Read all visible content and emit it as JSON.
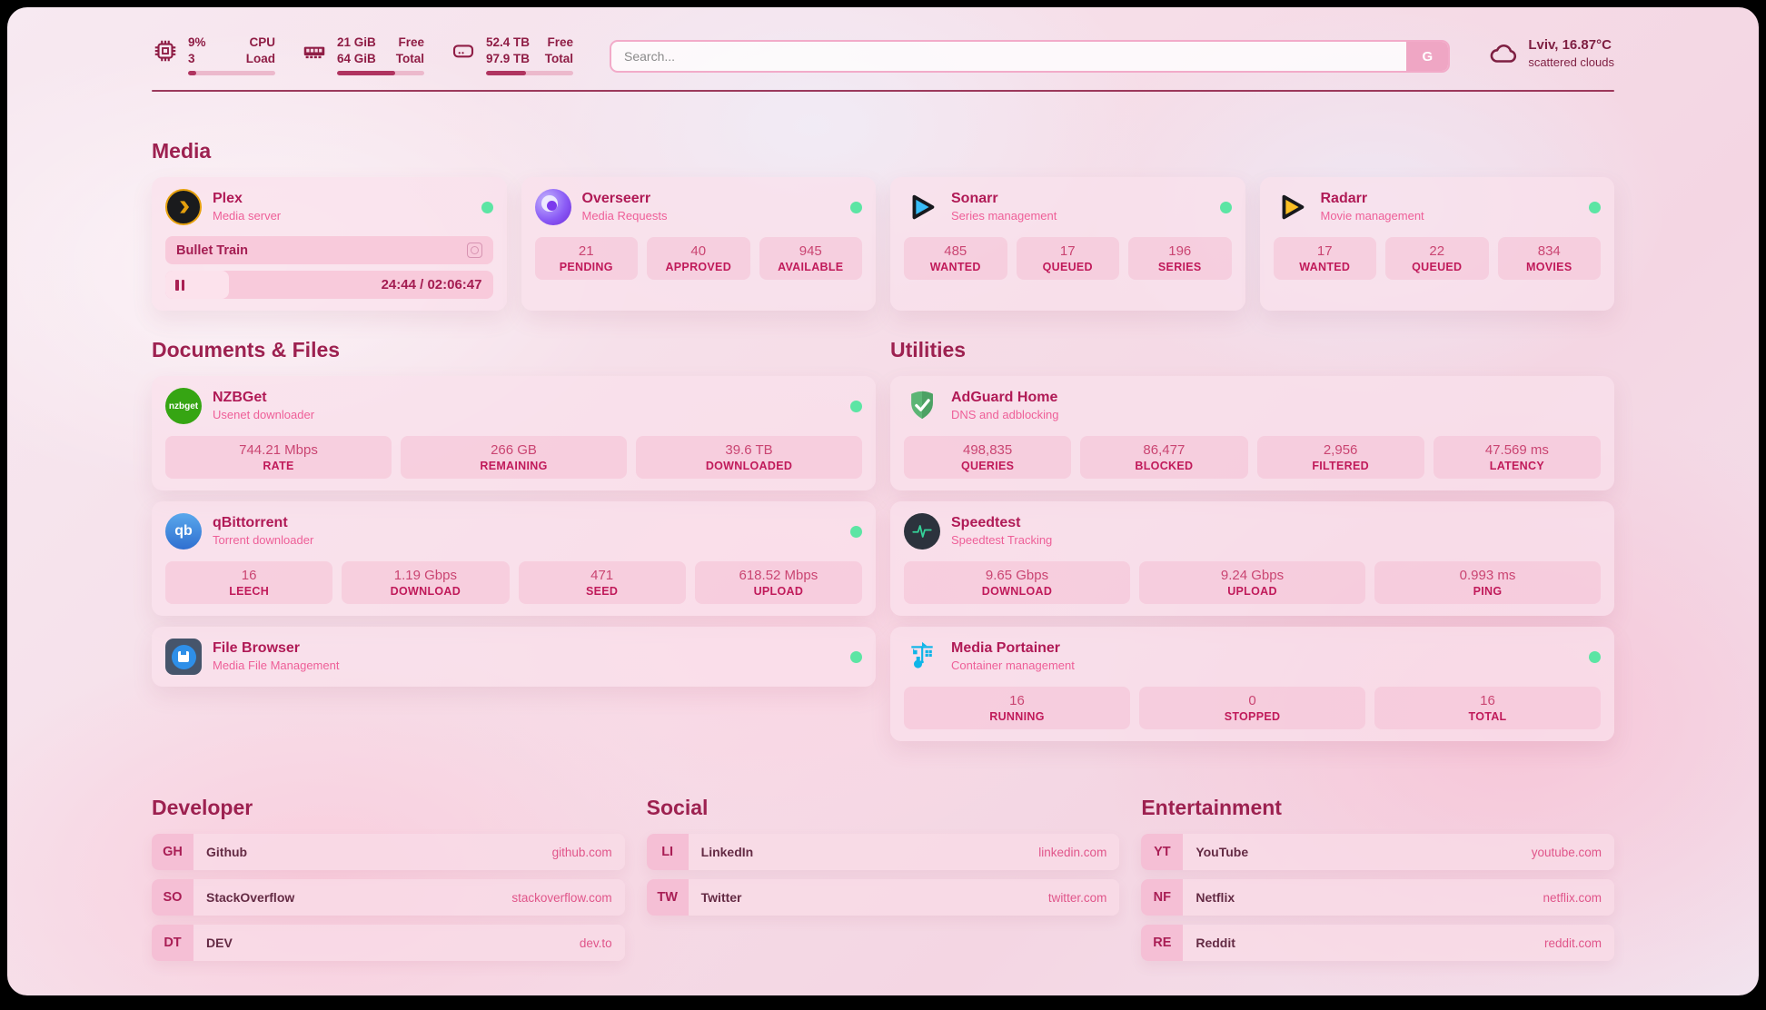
{
  "topbar": {
    "cpu": {
      "value1": "9%",
      "value2": "3",
      "label1": "CPU",
      "label2": "Load",
      "progress_pct": 9
    },
    "memory": {
      "value1": "21 GiB",
      "value2": "64 GiB",
      "label1": "Free",
      "label2": "Total",
      "progress_pct": 67
    },
    "disk": {
      "value1": "52.4 TB",
      "value2": "97.9 TB",
      "label1": "Free",
      "label2": "Total",
      "progress_pct": 46
    },
    "search": {
      "placeholder": "Search...",
      "button_label": "G"
    },
    "weather": {
      "location": "Lviv, 16.87°C",
      "condition": "scattered clouds"
    }
  },
  "media": {
    "heading": "Media",
    "plex": {
      "title": "Plex",
      "subtitle": "Media server",
      "now_playing": "Bullet Train",
      "time": "24:44 / 02:06:47",
      "progress_pct": 19.5
    },
    "overseerr": {
      "title": "Overseerr",
      "subtitle": "Media Requests",
      "stats": [
        {
          "value": "21",
          "label": "PENDING"
        },
        {
          "value": "40",
          "label": "APPROVED"
        },
        {
          "value": "945",
          "label": "AVAILABLE"
        }
      ]
    },
    "sonarr": {
      "title": "Sonarr",
      "subtitle": "Series management",
      "stats": [
        {
          "value": "485",
          "label": "WANTED"
        },
        {
          "value": "17",
          "label": "QUEUED"
        },
        {
          "value": "196",
          "label": "SERIES"
        }
      ]
    },
    "radarr": {
      "title": "Radarr",
      "subtitle": "Movie management",
      "stats": [
        {
          "value": "17",
          "label": "WANTED"
        },
        {
          "value": "22",
          "label": "QUEUED"
        },
        {
          "value": "834",
          "label": "MOVIES"
        }
      ]
    }
  },
  "documents": {
    "heading": "Documents & Files",
    "nzbget": {
      "title": "NZBGet",
      "subtitle": "Usenet downloader",
      "icon_label": "nzbget",
      "stats": [
        {
          "value": "744.21 Mbps",
          "label": "RATE"
        },
        {
          "value": "266 GB",
          "label": "REMAINING"
        },
        {
          "value": "39.6 TB",
          "label": "DOWNLOADED"
        }
      ]
    },
    "qbittorrent": {
      "title": "qBittorrent",
      "subtitle": "Torrent downloader",
      "icon_label": "qb",
      "stats": [
        {
          "value": "16",
          "label": "LEECH"
        },
        {
          "value": "1.19 Gbps",
          "label": "DOWNLOAD"
        },
        {
          "value": "471",
          "label": "SEED"
        },
        {
          "value": "618.52 Mbps",
          "label": "UPLOAD"
        }
      ]
    },
    "filebrowser": {
      "title": "File Browser",
      "subtitle": "Media File Management"
    }
  },
  "utilities": {
    "heading": "Utilities",
    "adguard": {
      "title": "AdGuard Home",
      "subtitle": "DNS and adblocking",
      "stats": [
        {
          "value": "498,835",
          "label": "QUERIES"
        },
        {
          "value": "86,477",
          "label": "BLOCKED"
        },
        {
          "value": "2,956",
          "label": "FILTERED"
        },
        {
          "value": "47.569 ms",
          "label": "LATENCY"
        }
      ]
    },
    "speedtest": {
      "title": "Speedtest",
      "subtitle": "Speedtest Tracking",
      "stats": [
        {
          "value": "9.65 Gbps",
          "label": "DOWNLOAD"
        },
        {
          "value": "9.24 Gbps",
          "label": "UPLOAD"
        },
        {
          "value": "0.993 ms",
          "label": "PING"
        }
      ]
    },
    "portainer": {
      "title": "Media Portainer",
      "subtitle": "Container management",
      "stats": [
        {
          "value": "16",
          "label": "RUNNING"
        },
        {
          "value": "0",
          "label": "STOPPED"
        },
        {
          "value": "16",
          "label": "TOTAL"
        }
      ]
    }
  },
  "links": {
    "developer": {
      "heading": "Developer",
      "items": [
        {
          "abbr": "GH",
          "name": "Github",
          "url": "github.com"
        },
        {
          "abbr": "SO",
          "name": "StackOverflow",
          "url": "stackoverflow.com"
        },
        {
          "abbr": "DT",
          "name": "DEV",
          "url": "dev.to"
        }
      ]
    },
    "social": {
      "heading": "Social",
      "items": [
        {
          "abbr": "LI",
          "name": "LinkedIn",
          "url": "linkedin.com"
        },
        {
          "abbr": "TW",
          "name": "Twitter",
          "url": "twitter.com"
        }
      ]
    },
    "entertainment": {
      "heading": "Entertainment",
      "items": [
        {
          "abbr": "YT",
          "name": "YouTube",
          "url": "youtube.com"
        },
        {
          "abbr": "NF",
          "name": "Netflix",
          "url": "netflix.com"
        },
        {
          "abbr": "RE",
          "name": "Reddit",
          "url": "reddit.com"
        }
      ]
    }
  },
  "colors": {
    "accent": "#9d2150",
    "status_online": "#5ce5a4",
    "stat_label": "#c01a5a",
    "link_url": "#e0558a"
  }
}
